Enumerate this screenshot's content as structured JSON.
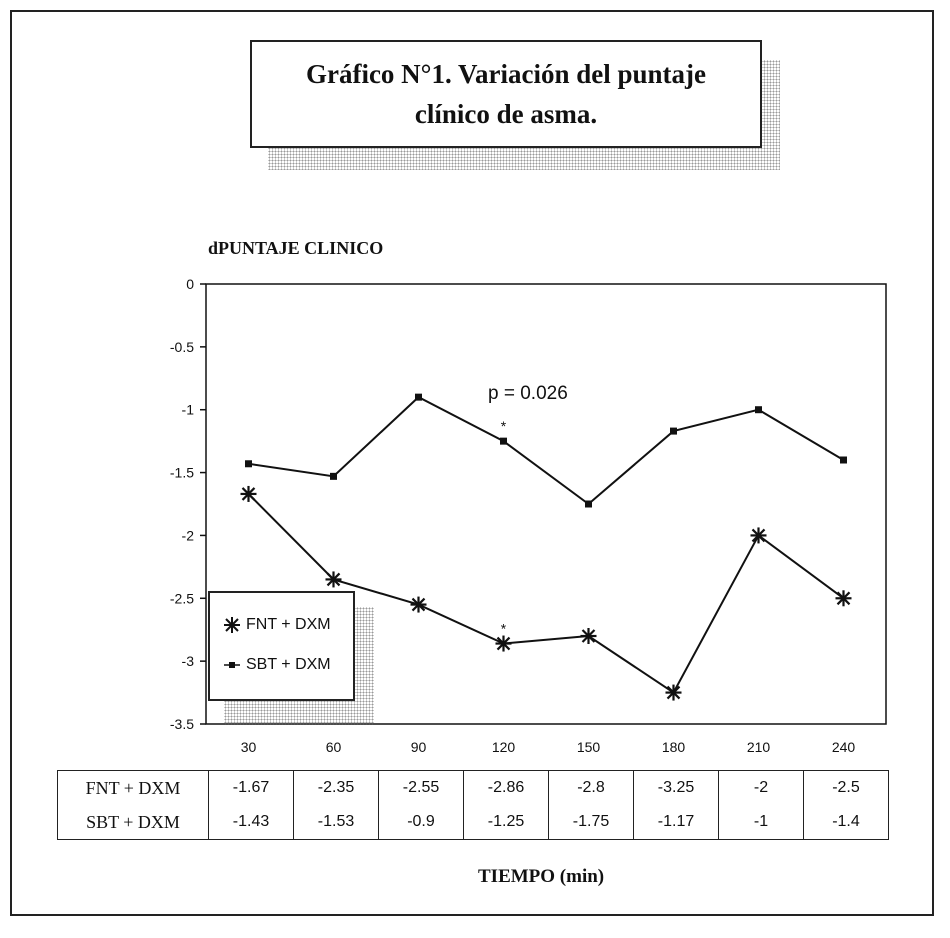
{
  "chart_data": {
    "type": "line",
    "title": "Gráfico N°1. Variación del puntaje clínico de asma.",
    "ylabel": "dPUNTAJE CLINICO",
    "xlabel": "TIEMPO (min)",
    "x": [
      30,
      60,
      90,
      120,
      150,
      180,
      210,
      240
    ],
    "ylim": [
      -3.5,
      0
    ],
    "yticks": [
      "0",
      "-0.5",
      "-1",
      "-1.5",
      "-2",
      "-2.5",
      "-3",
      "-3.5"
    ],
    "series": [
      {
        "name": "FNT + DXM",
        "marker": "asterisk",
        "values": [
          -1.67,
          -2.35,
          -2.55,
          -2.86,
          -2.8,
          -3.25,
          -2,
          -2.5
        ]
      },
      {
        "name": "SBT + DXM",
        "marker": "square",
        "values": [
          -1.43,
          -1.53,
          -0.9,
          -1.25,
          -1.75,
          -1.17,
          -1,
          -1.4
        ]
      }
    ],
    "annotations": [
      {
        "text": "p = 0.026"
      },
      {
        "text": "*",
        "x": 120,
        "series": "SBT + DXM"
      },
      {
        "text": "*",
        "x": 120,
        "series": "FNT + DXM"
      }
    ],
    "legend_position": "bottom-left",
    "grid": false
  },
  "table": {
    "rows": [
      {
        "label": "FNT + DXM",
        "values": [
          "-1.67",
          "-2.35",
          "-2.55",
          "-2.86",
          "-2.8",
          "-3.25",
          "-2",
          "-2.5"
        ]
      },
      {
        "label": "SBT + DXM",
        "values": [
          "-1.43",
          "-1.53",
          "-0.9",
          "-1.25",
          "-1.75",
          "-1.17",
          "-1",
          "-1.4"
        ]
      }
    ]
  }
}
